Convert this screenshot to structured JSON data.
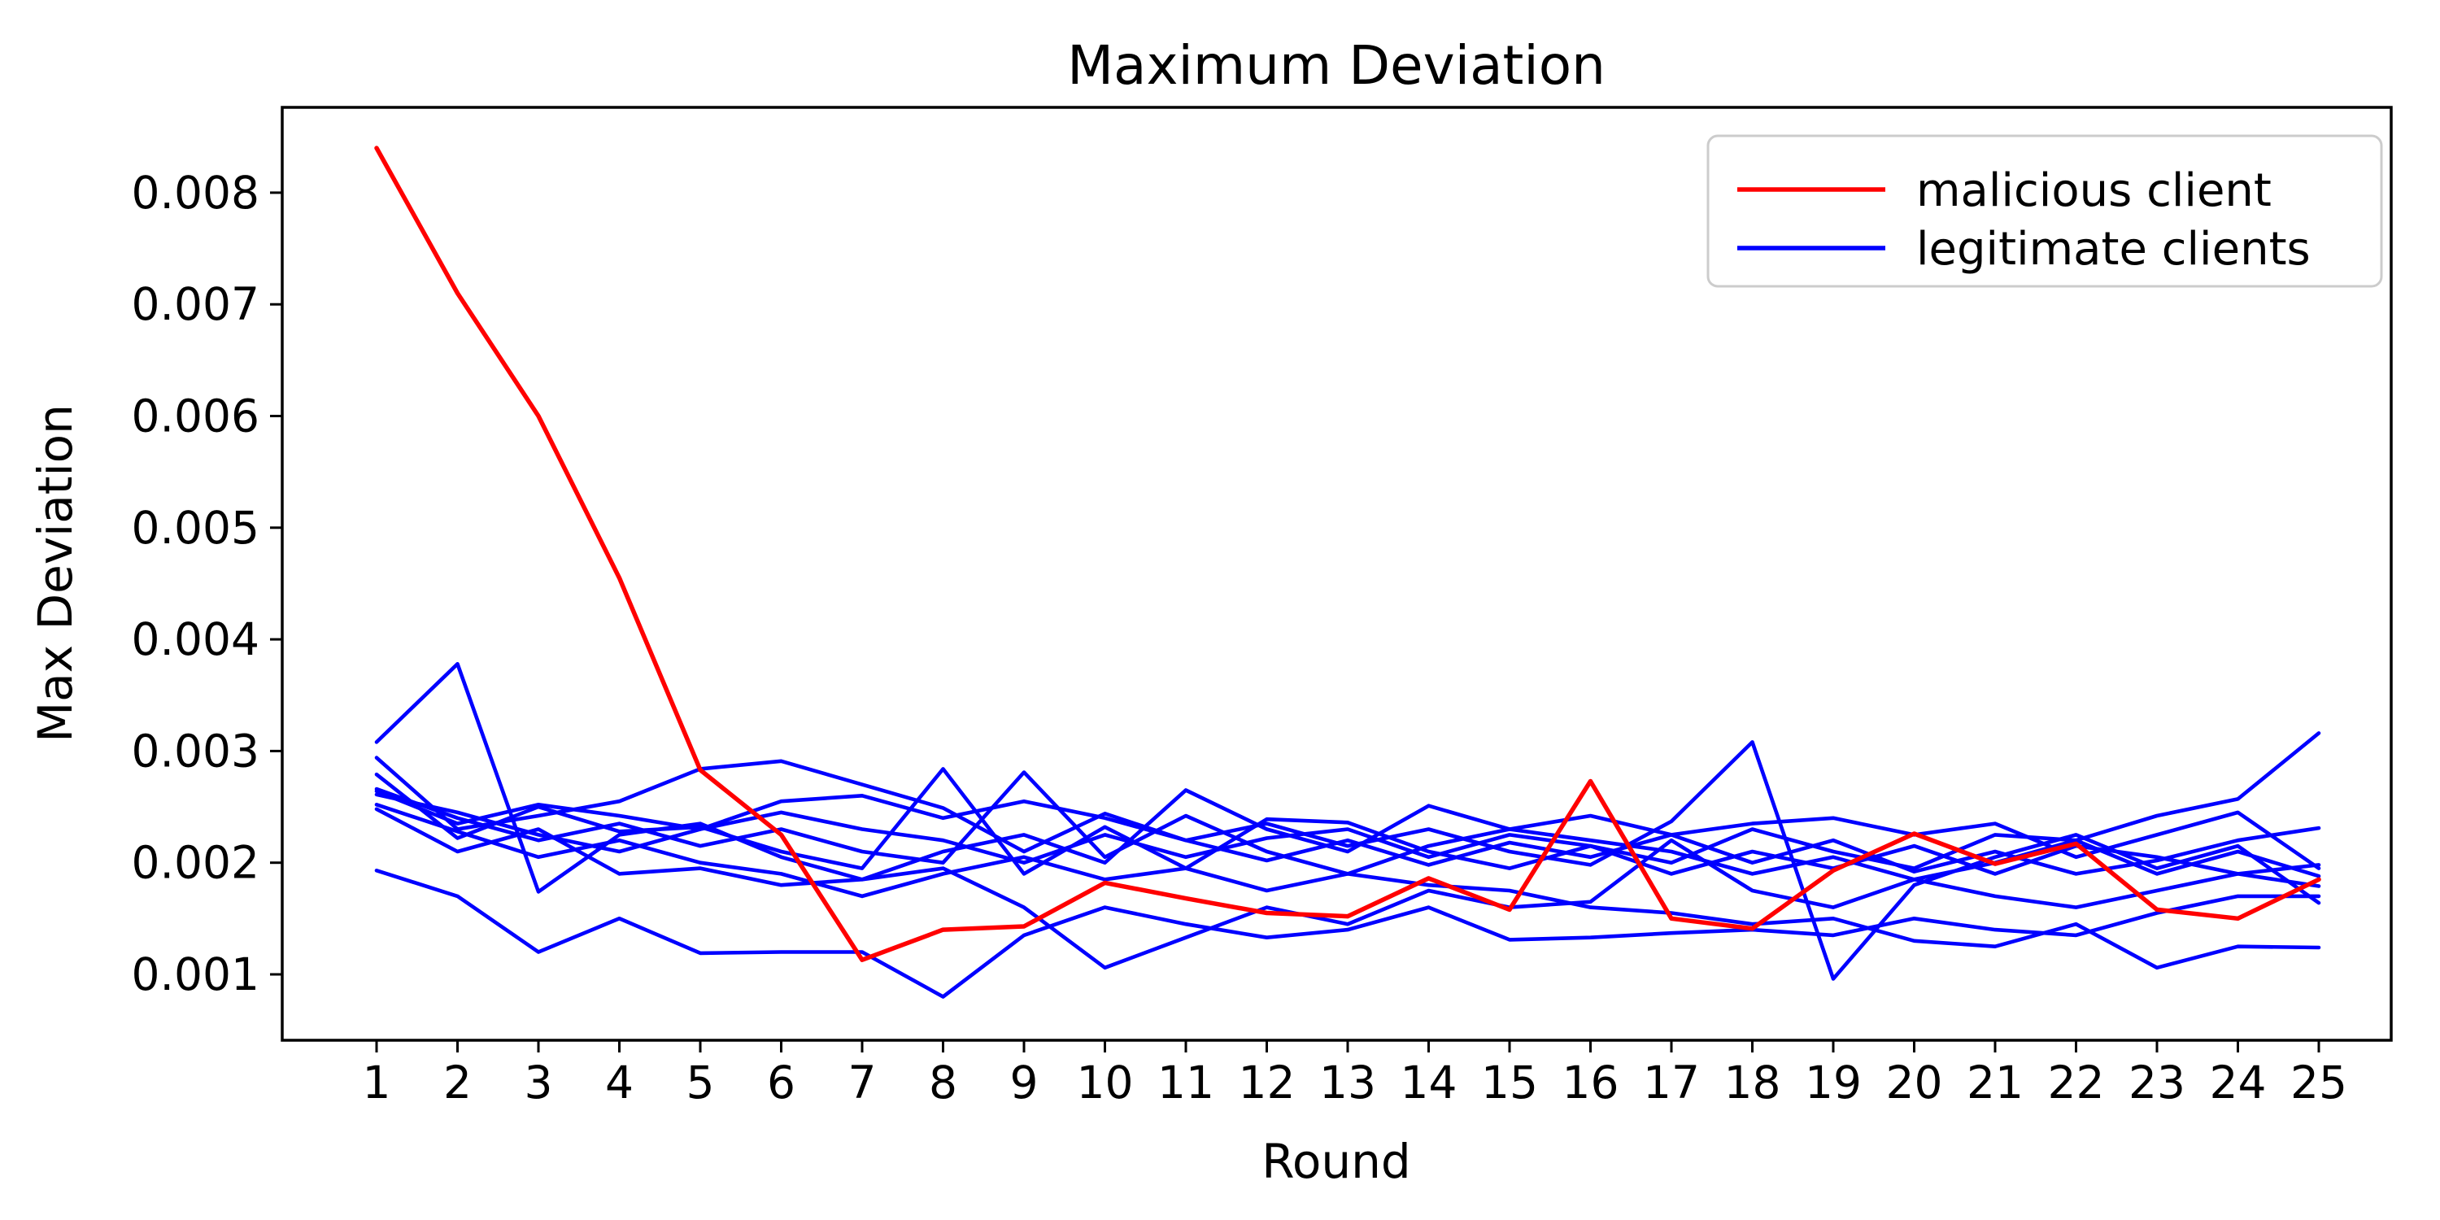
{
  "chart_data": {
    "type": "line",
    "title": "Maximum Deviation",
    "xlabel": "Round",
    "ylabel": "Max Deviation",
    "x": [
      1,
      2,
      3,
      4,
      5,
      6,
      7,
      8,
      9,
      10,
      11,
      12,
      13,
      14,
      15,
      16,
      17,
      18,
      19,
      20,
      21,
      22,
      23,
      24,
      25
    ],
    "xlim": [
      -0.16,
      26.16
    ],
    "ylim": [
      0.00041,
      0.00876
    ],
    "yticks": [
      0.001,
      0.002,
      0.003,
      0.004,
      0.005,
      0.006,
      0.007,
      0.008
    ],
    "grid": false,
    "legend_position": "upper right",
    "legend": [
      {
        "label": "malicious client",
        "color": "#ff0000"
      },
      {
        "label": "legitimate clients",
        "color": "#0000ff"
      }
    ],
    "colors": {
      "malicious": "#ff0000",
      "legitimate": "#0000ff",
      "axis": "#000000",
      "legend_border": "#cccccc",
      "background": "#ffffff"
    },
    "series": [
      {
        "name": "malicious client",
        "role": "malicious",
        "color": "#ff0000",
        "values": [
          0.0084,
          0.0071,
          0.006,
          0.00455,
          0.00283,
          0.00225,
          0.00113,
          0.0014,
          0.00143,
          0.00182,
          0.00168,
          0.00155,
          0.00152,
          0.00186,
          0.00158,
          0.00273,
          0.0015,
          0.00141,
          0.00193,
          0.00226,
          0.00199,
          0.00217,
          0.00158,
          0.0015,
          0.00185
        ]
      },
      {
        "name": "legitimate client 1",
        "role": "legitimate",
        "color": "#0000ff",
        "values": [
          0.00308,
          0.00378,
          0.00174,
          0.00225,
          0.00235,
          0.00205,
          0.00185,
          0.0021,
          0.00225,
          0.002,
          0.00265,
          0.0023,
          0.0021,
          0.00251,
          0.0023,
          0.0022,
          0.0021,
          0.0019,
          0.00205,
          0.00185,
          0.002,
          0.0022,
          0.0019,
          0.0021,
          0.00188
        ]
      },
      {
        "name": "legitimate client 2",
        "role": "legitimate",
        "color": "#0000ff",
        "values": [
          0.00294,
          0.0023,
          0.00242,
          0.00255,
          0.00284,
          0.00291,
          0.0027,
          0.00249,
          0.0021,
          0.00244,
          0.0022,
          0.00202,
          0.0022,
          0.00198,
          0.00218,
          0.00205,
          0.00225,
          0.002,
          0.0022,
          0.00192,
          0.0021,
          0.0019,
          0.00202,
          0.0022,
          0.00231
        ]
      },
      {
        "name": "legitimate client 3",
        "role": "legitimate",
        "color": "#0000ff",
        "values": [
          0.00279,
          0.00222,
          0.0025,
          0.00228,
          0.00232,
          0.0021,
          0.00195,
          0.00284,
          0.0019,
          0.00232,
          0.00195,
          0.00239,
          0.00236,
          0.0021,
          0.00195,
          0.00215,
          0.0019,
          0.0021,
          0.00195,
          0.00215,
          0.0019,
          0.00215,
          0.00205,
          0.0019,
          0.00198
        ]
      },
      {
        "name": "legitimate client 4",
        "role": "legitimate",
        "color": "#0000ff",
        "values": [
          0.00266,
          0.0024,
          0.0022,
          0.00235,
          0.00215,
          0.0023,
          0.0021,
          0.002,
          0.00281,
          0.00205,
          0.00242,
          0.0021,
          0.0019,
          0.00215,
          0.0023,
          0.00242,
          0.00225,
          0.00235,
          0.0024,
          0.00225,
          0.00235,
          0.00205,
          0.00225,
          0.00245,
          0.00195
        ]
      },
      {
        "name": "legitimate client 5",
        "role": "legitimate",
        "color": "#0000ff",
        "values": [
          0.00193,
          0.0017,
          0.0012,
          0.0015,
          0.00119,
          0.0012,
          0.0012,
          0.0008,
          0.00135,
          0.0016,
          0.00145,
          0.00133,
          0.0014,
          0.0016,
          0.00131,
          0.00133,
          0.00137,
          0.0014,
          0.00135,
          0.0015,
          0.0014,
          0.00135,
          0.00155,
          0.0017,
          0.0017
        ]
      },
      {
        "name": "legitimate client 6",
        "role": "legitimate",
        "color": "#0000ff",
        "values": [
          0.00248,
          0.0021,
          0.0023,
          0.0019,
          0.00195,
          0.0018,
          0.00185,
          0.00195,
          0.0016,
          0.00106,
          0.00133,
          0.0016,
          0.00145,
          0.00175,
          0.0016,
          0.00165,
          0.0022,
          0.00175,
          0.0016,
          0.00185,
          0.0017,
          0.0016,
          0.00175,
          0.0019,
          0.00179
        ]
      },
      {
        "name": "legitimate client 7",
        "role": "legitimate",
        "color": "#0000ff",
        "values": [
          0.00264,
          0.00235,
          0.00252,
          0.00242,
          0.0023,
          0.00255,
          0.0026,
          0.0024,
          0.00255,
          0.0024,
          0.0022,
          0.00235,
          0.00215,
          0.0023,
          0.0021,
          0.00198,
          0.00237,
          0.00308,
          0.00096,
          0.0018,
          0.00205,
          0.00225,
          0.00195,
          0.00215,
          0.00164
        ]
      },
      {
        "name": "legitimate client 8",
        "role": "legitimate",
        "color": "#0000ff",
        "values": [
          0.00261,
          0.00245,
          0.00225,
          0.0021,
          0.0023,
          0.00245,
          0.0023,
          0.0022,
          0.002,
          0.00225,
          0.00205,
          0.00222,
          0.0023,
          0.00205,
          0.00225,
          0.00215,
          0.002,
          0.0023,
          0.0021,
          0.00195,
          0.00225,
          0.0022,
          0.00242,
          0.00257,
          0.00316
        ]
      },
      {
        "name": "legitimate client 9",
        "role": "legitimate",
        "color": "#0000ff",
        "values": [
          0.00252,
          0.00228,
          0.00205,
          0.0022,
          0.002,
          0.0019,
          0.0017,
          0.0019,
          0.00205,
          0.00185,
          0.00195,
          0.00175,
          0.0019,
          0.0018,
          0.00175,
          0.0016,
          0.00155,
          0.00145,
          0.0015,
          0.0013,
          0.00125,
          0.00145,
          0.00106,
          0.00125,
          0.00124
        ]
      }
    ]
  }
}
